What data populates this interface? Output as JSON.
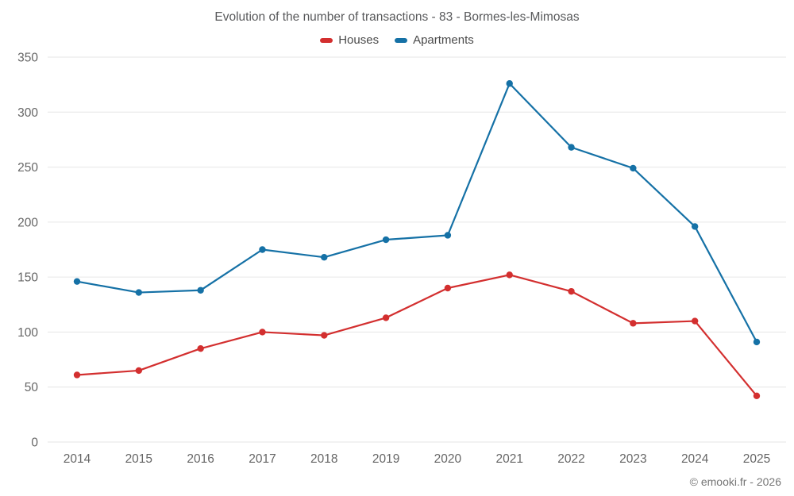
{
  "title": "Evolution of the number of transactions - 83 - Bormes-les-Mimosas",
  "footer": "© emooki.fr - 2026",
  "colors": {
    "houses": "#d32f2f",
    "apartments": "#1571a6",
    "grid": "#e6e6e6",
    "tick_label": "#666666",
    "title_text": "#58595b"
  },
  "chart_data": {
    "type": "line",
    "title": "Evolution of the number of transactions - 83 - Bormes-les-Mimosas",
    "x": [
      2014,
      2015,
      2016,
      2017,
      2018,
      2019,
      2020,
      2021,
      2022,
      2023,
      2024,
      2025
    ],
    "series": [
      {
        "name": "Houses",
        "color": "#d32f2f",
        "values": [
          61,
          65,
          85,
          100,
          97,
          113,
          140,
          152,
          137,
          108,
          110,
          42
        ]
      },
      {
        "name": "Apartments",
        "color": "#1571a6",
        "values": [
          146,
          136,
          138,
          175,
          168,
          184,
          188,
          326,
          268,
          249,
          196,
          91
        ]
      }
    ],
    "xlabel": "",
    "ylabel": "",
    "ylim": [
      0,
      350
    ],
    "yticks": [
      0,
      50,
      100,
      150,
      200,
      250,
      300,
      350
    ],
    "grid": true,
    "legend_position": "top"
  }
}
